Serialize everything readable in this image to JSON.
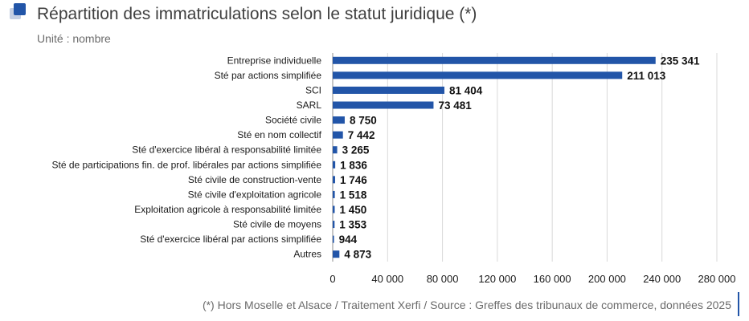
{
  "title": "Répartition des immatriculations selon le statut juridique (*)",
  "unit_label": "Unité : nombre",
  "footer": "(*) Hors Moselle et Alsace / Traitement Xerfi / Source : Greffes des tribunaux de commerce, données 2025",
  "colors": {
    "bar": "#2255a8",
    "grid": "#d9d9d9",
    "accent": "#2255a8"
  },
  "chart_data": {
    "type": "bar",
    "orientation": "horizontal",
    "categories": [
      "Entreprise individuelle",
      "Sté par actions simplifiée",
      "SCI",
      "SARL",
      "Société civile",
      "Sté en nom collectif",
      "Sté d'exercice libéral à responsabilité limitée",
      "Sté de participations fin. de prof. libérales  par actions simplifiée",
      "Sté civile de construction-vente",
      "Sté civile d'exploitation agricole",
      "Exploitation agricole à responsabilité limitée",
      "Sté civile de moyens",
      "Sté d'exercice libéral par actions simplifiée",
      "Autres"
    ],
    "values": [
      235341,
      211013,
      81404,
      73481,
      8750,
      7442,
      3265,
      1836,
      1746,
      1518,
      1450,
      1353,
      944,
      4873
    ],
    "value_labels": [
      "235 341",
      "211 013",
      "81 404",
      "73 481",
      "8 750",
      "7 442",
      "3 265",
      "1 836",
      "1 746",
      "1 518",
      "1 450",
      "1 353",
      "944",
      "4 873"
    ],
    "xlim": [
      0,
      280000
    ],
    "xticks": [
      0,
      40000,
      80000,
      120000,
      160000,
      200000,
      240000,
      280000
    ],
    "xtick_labels": [
      "0",
      "40 000",
      "80 000",
      "120 000",
      "160 000",
      "200 000",
      "240 000",
      "280 000"
    ],
    "grid": "vertical",
    "legend": "none"
  }
}
